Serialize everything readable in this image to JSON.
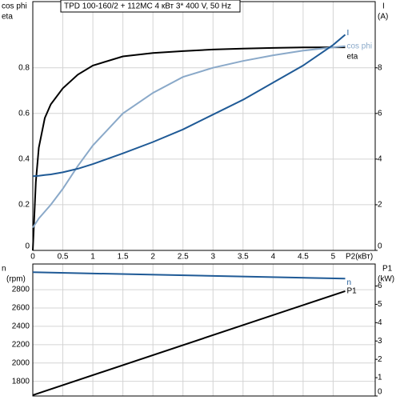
{
  "header": "TPD 100-160/2 + 112MC    4 кВт   3* 400 V, 50 Hz",
  "chart_data": [
    {
      "type": "line",
      "xlabel": "P2(кВт)",
      "ylabel": "cos phi",
      "ylabel2": "eta",
      "y2label": "I",
      "y2unit": "(A)",
      "x": [
        0,
        0.05,
        0.1,
        0.2,
        0.3,
        0.5,
        0.75,
        1,
        1.5,
        2,
        2.5,
        3,
        3.5,
        4,
        4.5,
        5,
        5.2
      ],
      "series": [
        {
          "name": "eta",
          "color": "#000000",
          "values": [
            0,
            0.3,
            0.45,
            0.58,
            0.64,
            0.71,
            0.77,
            0.81,
            0.85,
            0.865,
            0.873,
            0.88,
            0.884,
            0.887,
            0.889,
            0.89,
            0.89
          ]
        },
        {
          "name": "cos phi",
          "color": "#8aa9c9",
          "values": [
            0.1,
            0.12,
            0.14,
            0.17,
            0.2,
            0.27,
            0.37,
            0.46,
            0.6,
            0.69,
            0.76,
            0.8,
            0.83,
            0.855,
            0.875,
            0.89,
            0.895
          ]
        },
        {
          "name": "I",
          "color": "#1f5a96",
          "axis": "y2",
          "values": [
            3.25,
            3.26,
            3.27,
            3.3,
            3.33,
            3.42,
            3.58,
            3.78,
            4.25,
            4.75,
            5.3,
            5.95,
            6.6,
            7.35,
            8.1,
            9.0,
            9.45
          ]
        }
      ],
      "xlim": [
        0,
        5.7
      ],
      "xticks": [
        0,
        0.5,
        1,
        1.5,
        2,
        2.5,
        3,
        3.5,
        4,
        4.5,
        5
      ],
      "ylim": [
        0,
        1.09
      ],
      "yticks": [
        0,
        0.2,
        0.4,
        0.6,
        0.8
      ],
      "y2lim": [
        0,
        10.9
      ],
      "y2ticks": [
        0,
        2,
        4,
        6,
        8
      ],
      "grid": true
    },
    {
      "type": "line",
      "ylabel": "n",
      "yunit": "(rpm)",
      "y2label": "P1",
      "y2unit": "(kW)",
      "x": [
        0,
        5.2
      ],
      "series": [
        {
          "name": "n",
          "color": "#1f5a96",
          "values": [
            2990,
            2920
          ]
        },
        {
          "name": "P1",
          "color": "#000000",
          "axis": "y2",
          "values": [
            0.05,
            5.72
          ]
        }
      ],
      "xlim": [
        0,
        5.7
      ],
      "ylim": [
        1640,
        3080
      ],
      "yticks": [
        1800,
        2000,
        2200,
        2400,
        2600,
        2800
      ],
      "y2lim": [
        0,
        7.2
      ],
      "y2ticks": [
        0,
        1,
        2,
        3,
        4,
        5,
        6
      ],
      "grid": true
    }
  ]
}
